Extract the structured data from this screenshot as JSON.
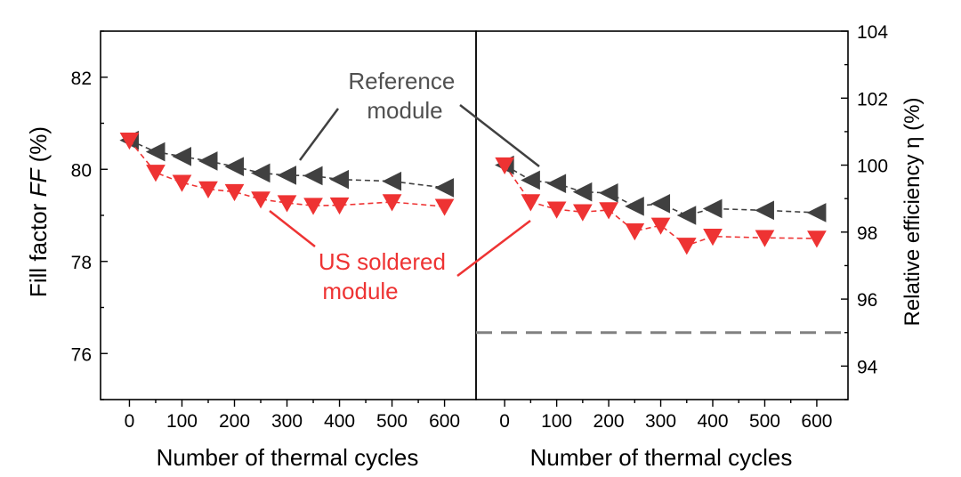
{
  "colors": {
    "reference": "#404040",
    "us_soldered": "#ee3333",
    "threshold": "#808080",
    "axis": "#000000"
  },
  "chart_data": [
    {
      "type": "line",
      "panel": "left",
      "xlabel": "Number of thermal cycles",
      "ylabel_pre": "Fill factor ",
      "ylabel_ital": "FF",
      "ylabel_post": " (%)",
      "xlim": [
        -55,
        660
      ],
      "ylim": [
        75.0,
        83.0
      ],
      "xticks": [
        0,
        100,
        200,
        300,
        400,
        500,
        600
      ],
      "yticks": [
        76,
        78,
        80,
        82
      ],
      "x": [
        0,
        50,
        100,
        150,
        200,
        250,
        300,
        350,
        400,
        500,
        600
      ],
      "series": [
        {
          "key": "reference",
          "marker": "triangle-left",
          "values": [
            80.63,
            80.38,
            80.28,
            80.18,
            80.06,
            79.92,
            79.87,
            79.86,
            79.78,
            79.74,
            79.6
          ]
        },
        {
          "key": "us_soldered",
          "marker": "triangle-down",
          "values": [
            80.63,
            79.93,
            79.71,
            79.57,
            79.51,
            79.35,
            79.27,
            79.21,
            79.22,
            79.29,
            79.19
          ]
        }
      ],
      "annotations": [
        {
          "id": "reference-label",
          "lines": [
            "Reference",
            "module"
          ]
        },
        {
          "id": "us-label",
          "lines": [
            "US soldered",
            "module"
          ]
        }
      ]
    },
    {
      "type": "line",
      "panel": "right",
      "xlabel": "Number of thermal cycles",
      "ylabel": "Relative efficiency η (%)",
      "xlim": [
        -55,
        660
      ],
      "ylim": [
        93.0,
        104.0
      ],
      "xticks": [
        0,
        100,
        200,
        300,
        400,
        500,
        600
      ],
      "yticks": [
        94,
        96,
        98,
        100,
        102,
        104
      ],
      "x": [
        0,
        50,
        100,
        150,
        200,
        250,
        300,
        350,
        400,
        500,
        600
      ],
      "series": [
        {
          "key": "reference",
          "marker": "triangle-left",
          "values": [
            100.0,
            99.55,
            99.45,
            99.2,
            99.17,
            98.77,
            98.85,
            98.5,
            98.7,
            98.65,
            98.58
          ]
        },
        {
          "key": "us_soldered",
          "marker": "triangle-down",
          "values": [
            100.0,
            98.9,
            98.68,
            98.6,
            98.66,
            98.03,
            98.2,
            97.6,
            97.87,
            97.83,
            97.81
          ]
        }
      ],
      "threshold": 95.0
    }
  ]
}
